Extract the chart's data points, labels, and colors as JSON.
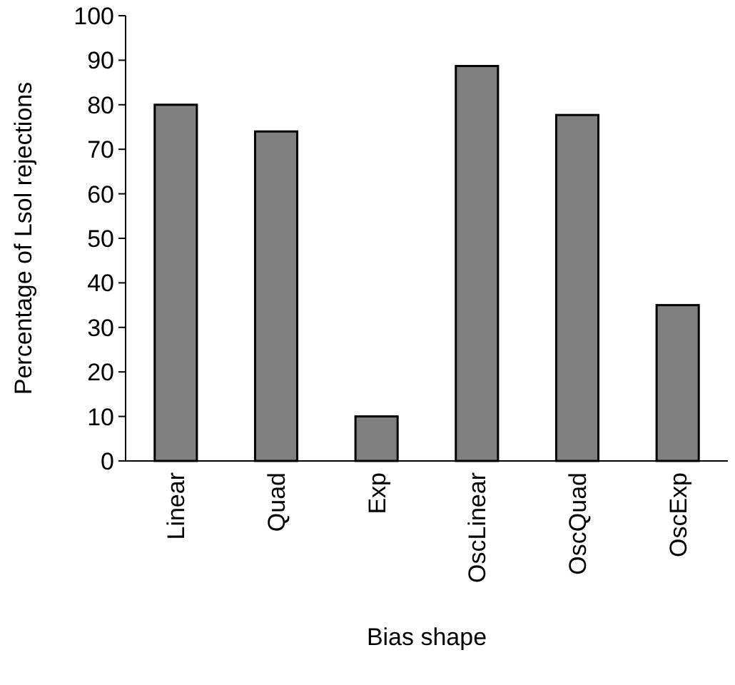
{
  "chart_data": {
    "type": "bar",
    "xlabel": "Bias shape",
    "ylabel": "Percentage of Lsol rejections",
    "categories": [
      "Linear",
      "Quad",
      "Exp",
      "OscLinear",
      "OscQuad",
      "OscExp"
    ],
    "values": [
      80,
      74,
      10,
      88.7,
      77.7,
      35
    ],
    "color": "#808080",
    "ylim": [
      0,
      100
    ],
    "yticks": [
      0,
      10,
      20,
      30,
      40,
      50,
      60,
      70,
      80,
      90,
      100
    ],
    "grid": false
  }
}
